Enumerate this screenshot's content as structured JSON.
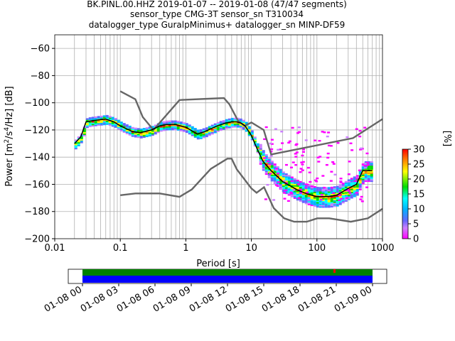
{
  "chart_data": [
    {
      "type": "heatmap",
      "title": [
        "BK.PINL.00.HHZ   2019-01-07 -- 2019-01-08  (47/47 segments)",
        "sensor_type CMG-3T sensor_sn T310034",
        "datalogger_type GuralpMinimus+ datalogger_sn MINP-DF59"
      ],
      "xlabel": "Period [s]",
      "ylabel_parts": [
        "Power [m",
        "2",
        "/s",
        "4",
        "/Hz] [dB]"
      ],
      "x_scale": "log",
      "xlim": [
        0.01,
        1000
      ],
      "ylim": [
        -200,
        -50
      ],
      "x_ticks": [
        0.01,
        0.1,
        1,
        10,
        100,
        1000
      ],
      "x_tick_labels": [
        "0.01",
        "0.1",
        "1",
        "10",
        "100",
        "1000"
      ],
      "y_ticks": [
        -60,
        -80,
        -100,
        -120,
        -140,
        -160,
        -180,
        -200
      ],
      "y_tick_labels": [
        "−60",
        "−80",
        "−100",
        "−120",
        "−140",
        "−160",
        "−180",
        "−200"
      ],
      "grid": true,
      "colorbar": {
        "label": "[%]",
        "ticks": [
          0,
          5,
          10,
          15,
          20,
          25,
          30
        ],
        "tick_labels": [
          "0",
          "5",
          "10",
          "15",
          "20",
          "25",
          "30"
        ],
        "range": [
          0,
          30
        ]
      },
      "series": [
        {
          "name": "mode",
          "color": "#000000",
          "x": [
            0.02,
            0.025,
            0.03,
            0.04,
            0.06,
            0.08,
            0.1,
            0.15,
            0.2,
            0.3,
            0.4,
            0.5,
            0.7,
            1,
            1.5,
            2,
            3,
            4,
            5,
            6,
            7,
            8,
            10,
            12,
            15,
            20,
            30,
            50,
            70,
            100,
            150,
            200,
            300,
            400,
            500,
            700
          ],
          "y": [
            -130,
            -125,
            -114,
            -113,
            -112,
            -114,
            -117,
            -121,
            -122,
            -120,
            -117,
            -116,
            -116,
            -118,
            -123,
            -121,
            -117,
            -115,
            -114,
            -114,
            -115,
            -117,
            -124,
            -133,
            -143,
            -150,
            -158,
            -164,
            -167,
            -169,
            -169,
            -168,
            -163,
            -160,
            -150,
            -150
          ]
        },
        {
          "name": "noise-model-upper",
          "color": "#666666",
          "x": [
            0.1,
            0.17,
            0.22,
            0.32,
            0.8,
            3.8,
            4.6,
            6.3,
            7.9,
            10,
            15.4,
            20,
            354.8,
            1000
          ],
          "y": [
            -91.5,
            -97.4,
            -110.5,
            -120,
            -98,
            -96.5,
            -101,
            -113.5,
            -117,
            -114.5,
            -120,
            -138,
            -126,
            -112
          ]
        },
        {
          "name": "noise-model-lower",
          "color": "#666666",
          "x": [
            0.1,
            0.17,
            0.4,
            0.8,
            1.24,
            2.4,
            4.3,
            5,
            6,
            10,
            12,
            15.6,
            21.9,
            31.6,
            45,
            70,
            101,
            154,
            328,
            600,
            1000
          ],
          "y": [
            -168,
            -166.7,
            -166.7,
            -169.2,
            -163.7,
            -148.6,
            -141.1,
            -141.1,
            -149,
            -163,
            -166.2,
            -162.1,
            -177.5,
            -185,
            -187.5,
            -187.5,
            -185,
            -185,
            -187.5,
            -185,
            -178
          ]
        }
      ]
    },
    {
      "type": "timeline",
      "x_tick_labels": [
        "01-08 00",
        "01-08 03",
        "01-08 06",
        "01-08 09",
        "01-08 12",
        "01-08 15",
        "01-08 18",
        "01-08 21",
        "01-09 00"
      ],
      "bars": [
        {
          "name": "data-coverage",
          "color": "#008000"
        },
        {
          "name": "psd-coverage",
          "color": "#0000ff"
        }
      ],
      "marker": {
        "position": "near 01-08 21",
        "color": "#ff0000"
      }
    }
  ],
  "colors": {
    "grid": "#b0b0b0",
    "axes": "#000000",
    "mode": "#000000",
    "noise": "#666666"
  }
}
